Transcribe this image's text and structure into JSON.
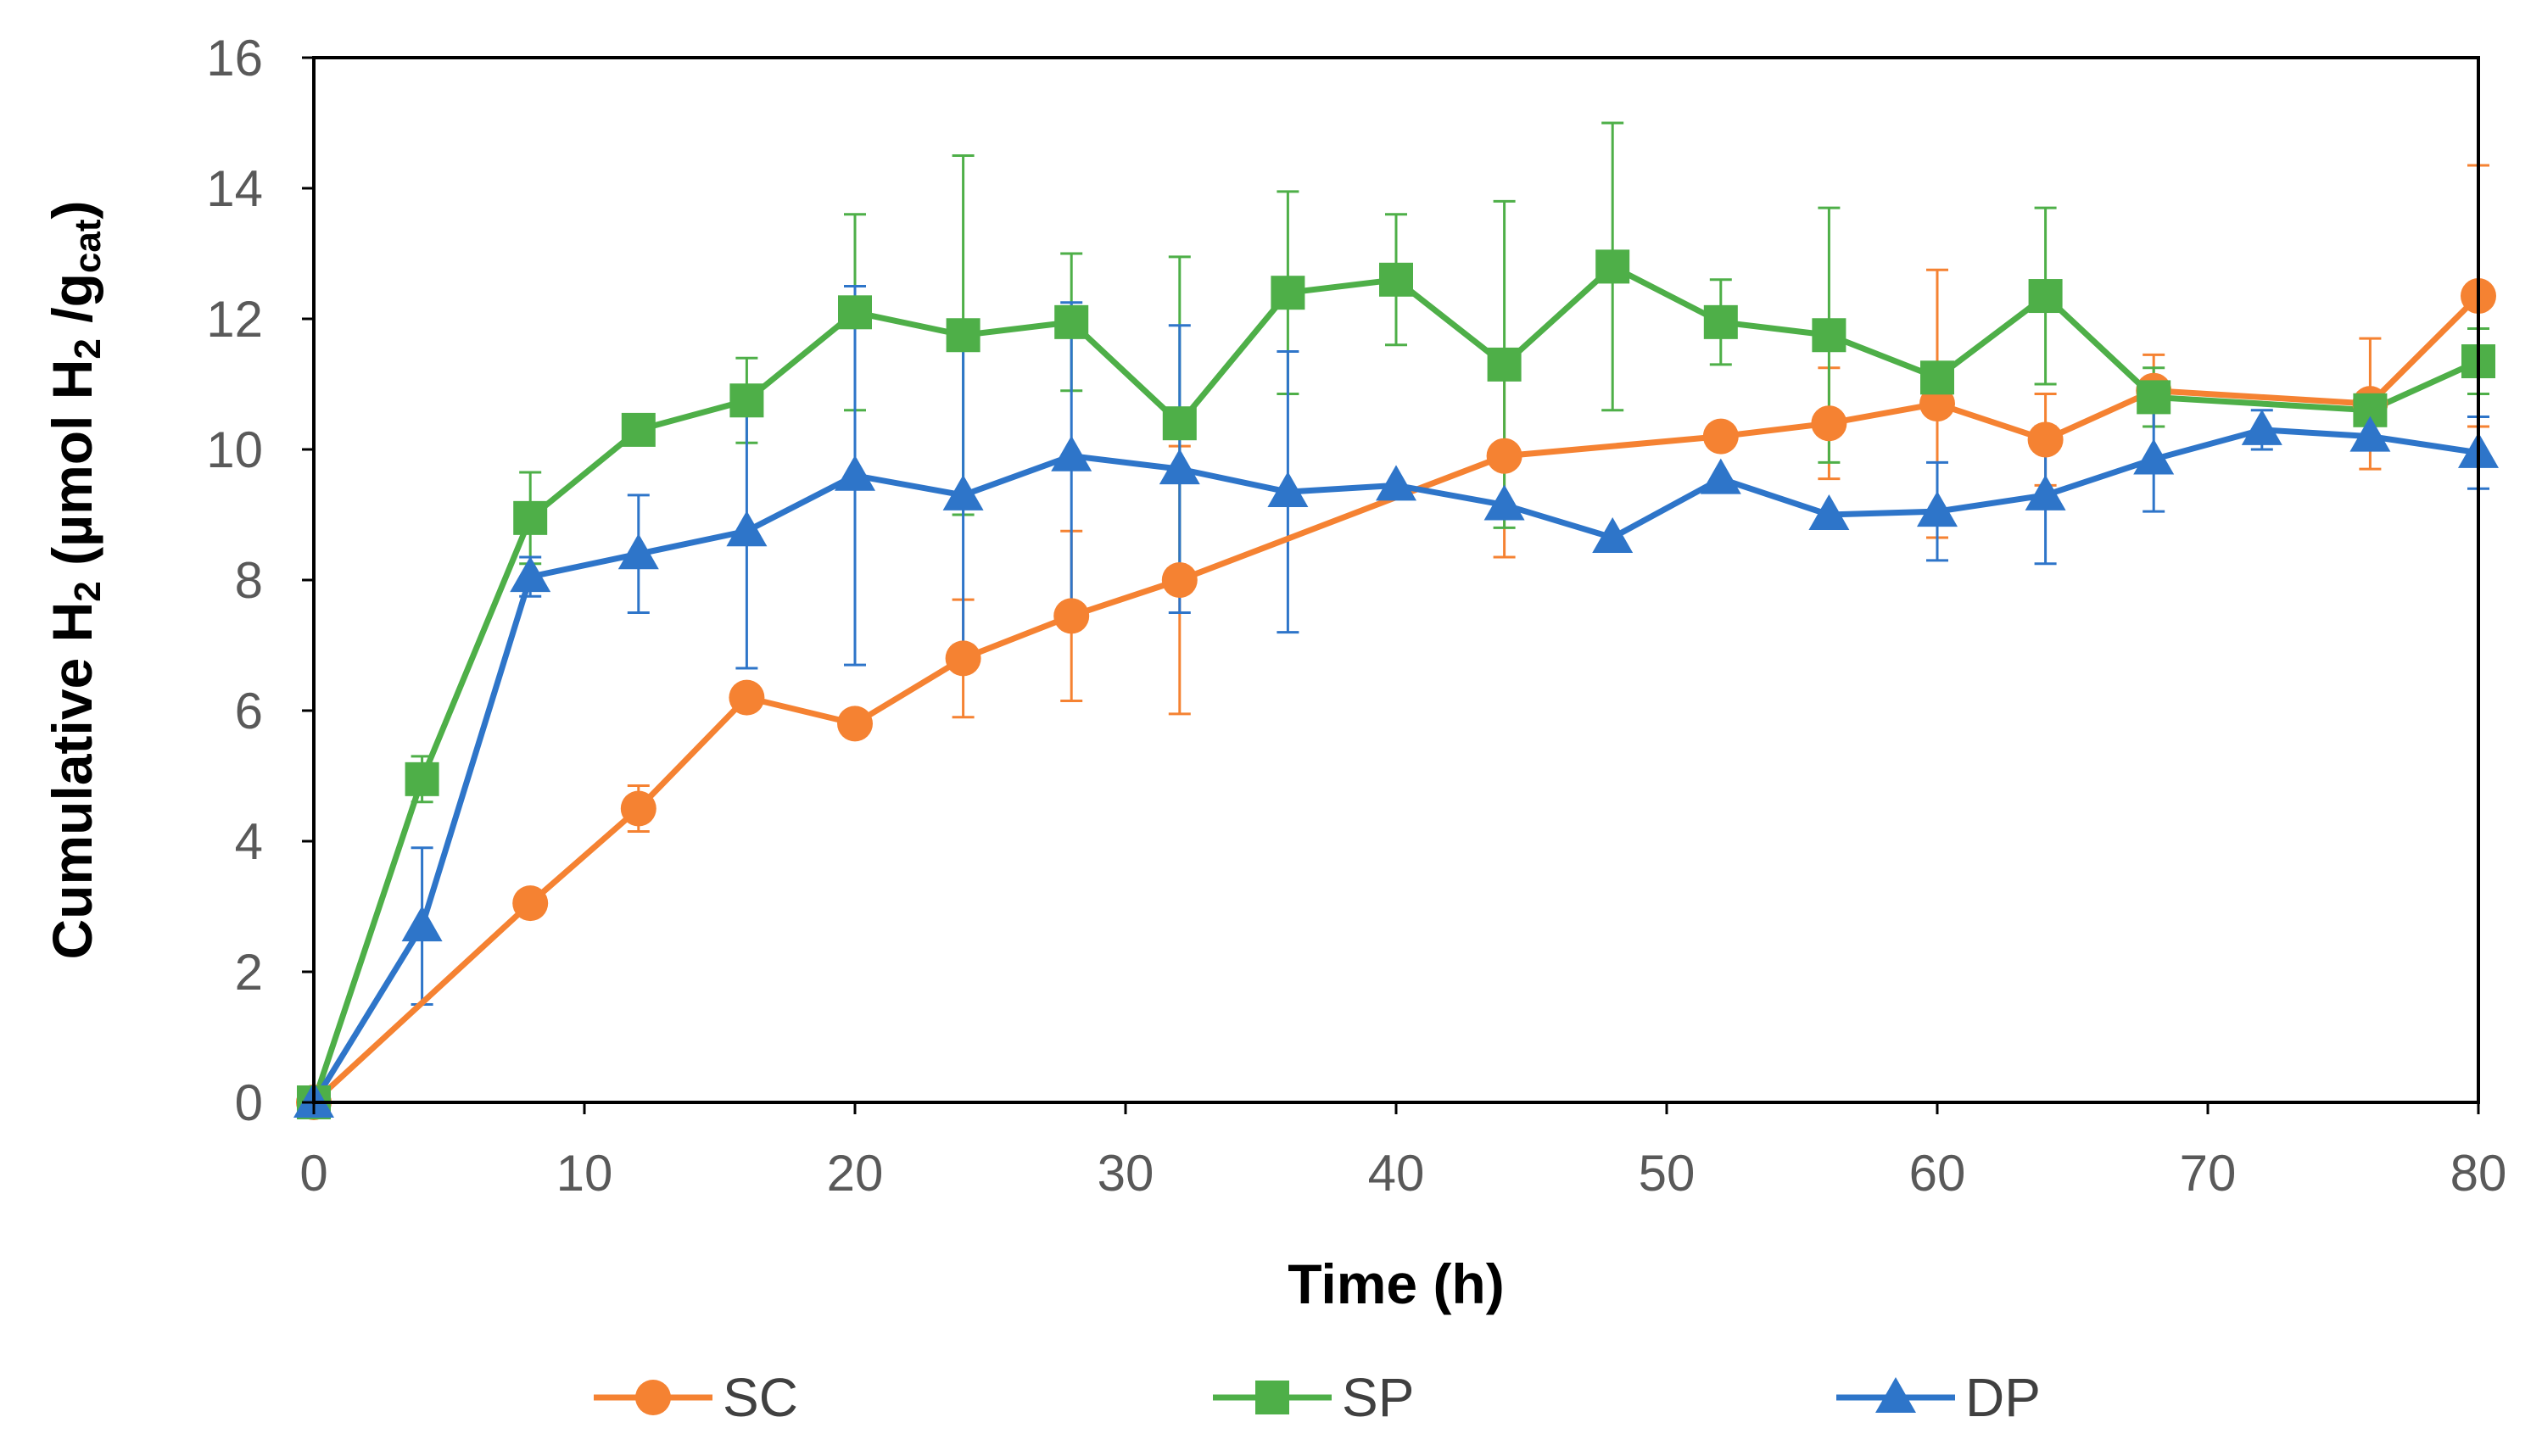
{
  "chart_data": {
    "type": "line",
    "xlabel": "Time (h)",
    "ylabel": {
      "prefix": "Cumulative H",
      "sub1": "2",
      "middle": " (µmol H",
      "sub2": "2",
      "middle2": " /g",
      "sub3": "cat",
      "suffix": ")"
    },
    "xlim": [
      0,
      80
    ],
    "ylim": [
      0,
      16
    ],
    "xticks": [
      0,
      10,
      20,
      30,
      40,
      50,
      60,
      70,
      80
    ],
    "yticks": [
      0,
      2,
      4,
      6,
      8,
      10,
      12,
      14,
      16
    ],
    "grid": false,
    "legend_position": "bottom",
    "series": [
      {
        "name": "SC",
        "color": "#F58232",
        "marker": "circle",
        "points": [
          {
            "x": 0,
            "y": 0,
            "err": null
          },
          {
            "x": 8,
            "y": 3.05,
            "err": null
          },
          {
            "x": 12,
            "y": 4.5,
            "err": 0.35
          },
          {
            "x": 16,
            "y": 6.2,
            "err": null
          },
          {
            "x": 20,
            "y": 5.8,
            "err": null
          },
          {
            "x": 24,
            "y": 6.8,
            "err": 0.9
          },
          {
            "x": 28,
            "y": 7.45,
            "err": 1.3
          },
          {
            "x": 32,
            "y": 8.0,
            "err": 2.05
          },
          {
            "x": 44,
            "y": 9.9,
            "err": 1.55
          },
          {
            "x": 52,
            "y": 10.2,
            "err": null
          },
          {
            "x": 56,
            "y": 10.4,
            "err": 0.85
          },
          {
            "x": 60,
            "y": 10.7,
            "err": 2.05
          },
          {
            "x": 64,
            "y": 10.15,
            "err": 0.7
          },
          {
            "x": 68,
            "y": 10.9,
            "err": 0.55
          },
          {
            "x": 76,
            "y": 10.7,
            "err": 1.0
          },
          {
            "x": 80,
            "y": 12.35,
            "err": 2.0
          }
        ]
      },
      {
        "name": "SP",
        "color": "#4EAF48",
        "marker": "square",
        "points": [
          {
            "x": 0,
            "y": 0,
            "err": null
          },
          {
            "x": 4,
            "y": 4.95,
            "err": 0.35
          },
          {
            "x": 8,
            "y": 8.95,
            "err": 0.7
          },
          {
            "x": 12,
            "y": 10.3,
            "err": null
          },
          {
            "x": 16,
            "y": 10.75,
            "err": 0.65
          },
          {
            "x": 20,
            "y": 12.1,
            "err": 1.5
          },
          {
            "x": 24,
            "y": 11.75,
            "err": 2.75
          },
          {
            "x": 28,
            "y": 11.95,
            "err": 1.05
          },
          {
            "x": 32,
            "y": 10.4,
            "err": 2.55
          },
          {
            "x": 36,
            "y": 12.4,
            "err": 1.55
          },
          {
            "x": 40,
            "y": 12.6,
            "err": 1.0
          },
          {
            "x": 44,
            "y": 11.3,
            "err": 2.5
          },
          {
            "x": 48,
            "y": 12.8,
            "err": 2.2
          },
          {
            "x": 52,
            "y": 11.95,
            "err": 0.65
          },
          {
            "x": 56,
            "y": 11.75,
            "err": 1.95
          },
          {
            "x": 60,
            "y": 11.1,
            "err": null
          },
          {
            "x": 64,
            "y": 12.35,
            "err": 1.35
          },
          {
            "x": 68,
            "y": 10.8,
            "err": 0.45
          },
          {
            "x": 76,
            "y": 10.6,
            "err": null
          },
          {
            "x": 80,
            "y": 11.35,
            "err": 0.5
          }
        ]
      },
      {
        "name": "DP",
        "color": "#2E75C9",
        "marker": "triangle",
        "points": [
          {
            "x": 0,
            "y": 0,
            "err": null
          },
          {
            "x": 4,
            "y": 2.7,
            "err": 1.2
          },
          {
            "x": 8,
            "y": 8.05,
            "err": 0.3
          },
          {
            "x": 12,
            "y": 8.4,
            "err": 0.9
          },
          {
            "x": 16,
            "y": 8.75,
            "err": 2.1
          },
          {
            "x": 20,
            "y": 9.6,
            "err": 2.9
          },
          {
            "x": 24,
            "y": 9.3,
            "err": 2.3
          },
          {
            "x": 28,
            "y": 9.9,
            "err": 2.35
          },
          {
            "x": 32,
            "y": 9.7,
            "err": 2.2
          },
          {
            "x": 36,
            "y": 9.35,
            "err": 2.15
          },
          {
            "x": 40,
            "y": 9.45,
            "err": null
          },
          {
            "x": 44,
            "y": 9.15,
            "err": null
          },
          {
            "x": 48,
            "y": 8.65,
            "err": null
          },
          {
            "x": 52,
            "y": 9.55,
            "err": null
          },
          {
            "x": 56,
            "y": 9.0,
            "err": null
          },
          {
            "x": 60,
            "y": 9.05,
            "err": 0.75
          },
          {
            "x": 64,
            "y": 9.3,
            "err": 1.05
          },
          {
            "x": 68,
            "y": 9.85,
            "err": 0.8
          },
          {
            "x": 72,
            "y": 10.3,
            "err": 0.3
          },
          {
            "x": 76,
            "y": 10.2,
            "err": null
          },
          {
            "x": 80,
            "y": 9.95,
            "err": 0.55
          }
        ]
      }
    ]
  }
}
